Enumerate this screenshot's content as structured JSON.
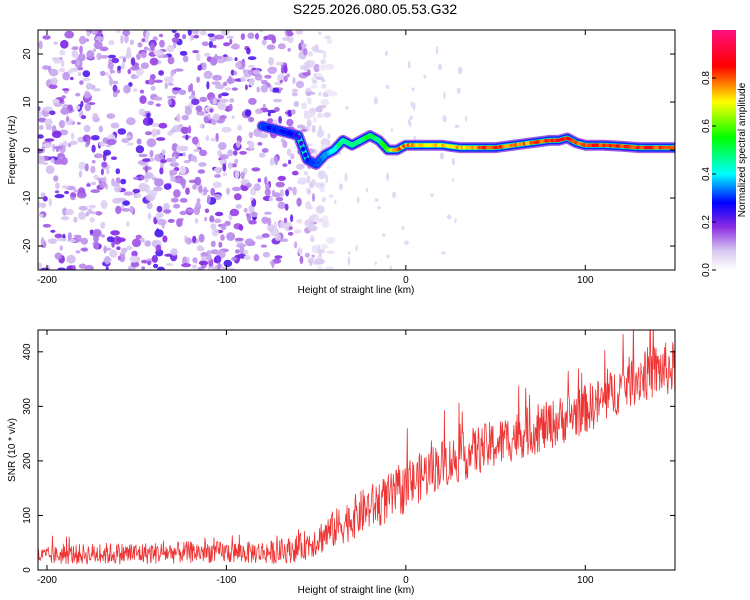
{
  "figure_title": "S225.2026.080.05.53.G32",
  "chart_data": [
    {
      "type": "heatmap",
      "title": "S225.2026.080.05.53.G32",
      "xlabel": "Height of straight line (km)",
      "ylabel": "Frequency (Hz)",
      "xlim": [
        -205,
        150
      ],
      "ylim": [
        -25,
        25
      ],
      "xticks": [
        -200,
        -100,
        0,
        100
      ],
      "xtick_labels": [
        "-200",
        "-100",
        "0",
        "100"
      ],
      "yticks": [
        -20,
        -10,
        0,
        10,
        20
      ],
      "ytick_labels": [
        "-20",
        "-10",
        "0",
        "10",
        "20"
      ],
      "grid": false,
      "colorbar": {
        "label": "Normalized spectral amplitude",
        "range": [
          0,
          1
        ],
        "ticks": [
          0.0,
          0.2,
          0.4,
          0.6,
          0.8
        ],
        "tick_labels": [
          "0.0",
          "0.2",
          "0.4",
          "0.6",
          "0.8"
        ],
        "colors": [
          "#ffffff",
          "#8a2be2",
          "#0000ff",
          "#00ffff",
          "#00ff00",
          "#ffff00",
          "#ff0000",
          "#ff0080"
        ]
      },
      "noise_region_km": [
        -205,
        -55
      ],
      "signal_track": {
        "x_km": [
          -80,
          -70,
          -60,
          -55,
          -50,
          -45,
          -40,
          -35,
          -30,
          -25,
          -20,
          -15,
          -10,
          -5,
          0,
          10,
          20,
          30,
          40,
          50,
          60,
          70,
          80,
          85,
          90,
          95,
          100,
          110,
          120,
          130,
          140,
          150
        ],
        "freq_hz": [
          5,
          4,
          3,
          -2,
          -3,
          -1,
          0,
          2,
          1,
          2,
          3,
          2,
          0,
          0,
          1,
          1,
          1,
          0.5,
          0.5,
          0.5,
          1,
          1.5,
          2,
          2,
          2.5,
          1.5,
          1,
          1,
          0.8,
          0.5,
          0.5,
          0.5
        ],
        "amplitude": [
          0.3,
          0.3,
          0.25,
          0.3,
          0.3,
          0.35,
          0.45,
          0.5,
          0.5,
          0.5,
          0.55,
          0.5,
          0.6,
          0.8,
          0.8,
          0.75,
          0.75,
          0.75,
          0.8,
          0.85,
          0.8,
          0.8,
          0.85,
          0.9,
          0.85,
          0.85,
          0.85,
          0.85,
          0.85,
          0.85,
          0.85,
          0.85
        ]
      }
    },
    {
      "type": "line",
      "xlabel": "Height of straight line (km)",
      "ylabel": "SNR (10 * v/v)",
      "xlim": [
        -205,
        150
      ],
      "ylim": [
        0,
        440
      ],
      "xticks": [
        -200,
        -100,
        0,
        100
      ],
      "xtick_labels": [
        "-200",
        "-100",
        "0",
        "100"
      ],
      "yticks": [
        0,
        100,
        200,
        300,
        400
      ],
      "ytick_labels": [
        "0",
        "100",
        "200",
        "300",
        "400"
      ],
      "grid": false,
      "series": [
        {
          "name": "SNR",
          "color": "#ee3333",
          "x": [
            -205,
            -190,
            -170,
            -150,
            -130,
            -110,
            -90,
            -70,
            -60,
            -50,
            -40,
            -30,
            -20,
            -10,
            0,
            10,
            20,
            30,
            40,
            50,
            60,
            70,
            80,
            90,
            100,
            110,
            120,
            130,
            140,
            150
          ],
          "values": [
            25,
            28,
            30,
            30,
            32,
            33,
            32,
            33,
            40,
            55,
            75,
            95,
            115,
            130,
            150,
            175,
            195,
            205,
            220,
            230,
            245,
            255,
            265,
            280,
            295,
            310,
            335,
            355,
            365,
            370
          ],
          "spread": [
            15,
            18,
            20,
            20,
            20,
            20,
            20,
            22,
            25,
            30,
            35,
            40,
            42,
            45,
            45,
            45,
            45,
            45,
            45,
            45,
            45,
            45,
            45,
            45,
            45,
            45,
            45,
            50,
            50,
            50
          ]
        }
      ]
    }
  ]
}
